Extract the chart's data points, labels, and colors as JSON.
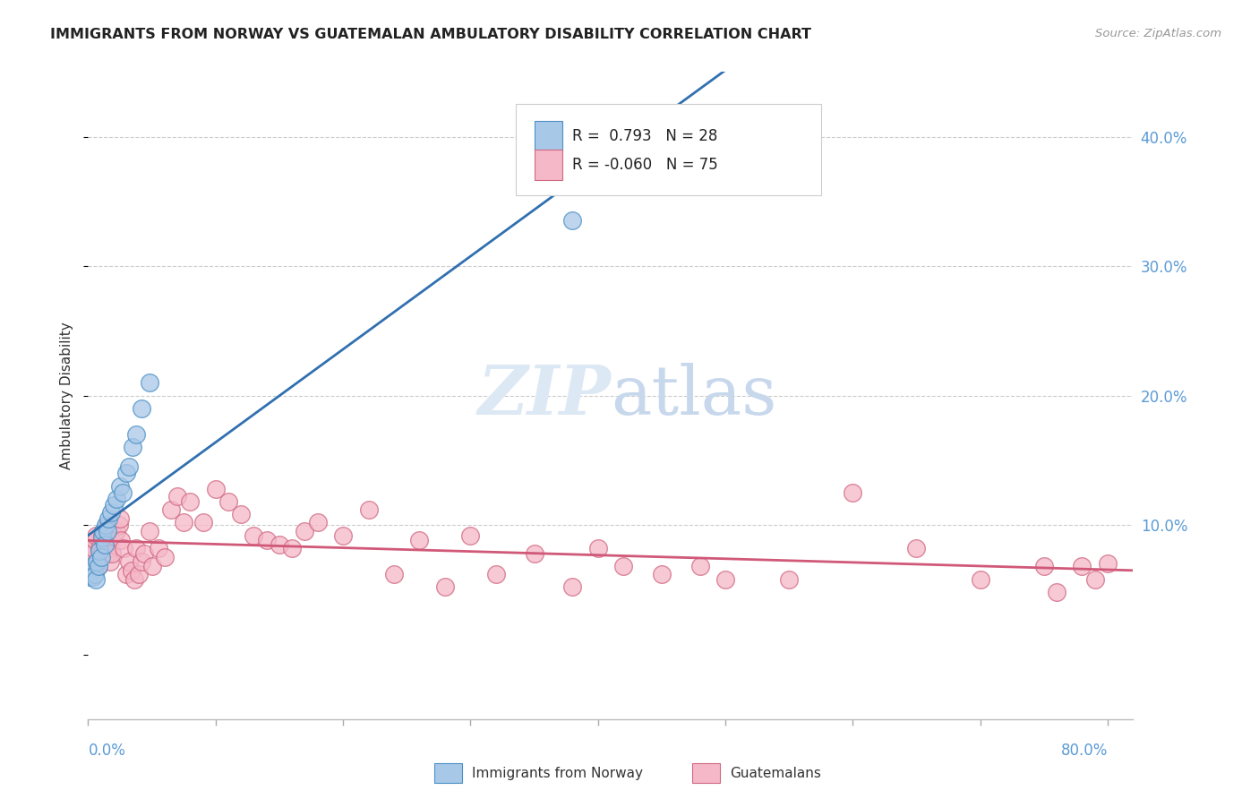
{
  "title": "IMMIGRANTS FROM NORWAY VS GUATEMALAN AMBULATORY DISABILITY CORRELATION CHART",
  "source": "Source: ZipAtlas.com",
  "ylabel": "Ambulatory Disability",
  "right_yticks": [
    "40.0%",
    "30.0%",
    "20.0%",
    "10.0%"
  ],
  "right_ytick_vals": [
    0.4,
    0.3,
    0.2,
    0.1
  ],
  "norway_color": "#a8c8e8",
  "norwegianfill_color": "#a8c8e8",
  "guatemalan_color": "#f5b8c8",
  "norway_edge_color": "#4a90c4",
  "guatemalan_edge_color": "#d06880",
  "norway_line_color": "#3070b0",
  "guatemalan_line_color": "#d05878",
  "watermark_color": "#dde8f5",
  "xlim": [
    0.0,
    0.82
  ],
  "ylim": [
    -0.05,
    0.45
  ],
  "norway_x": [
    0.001,
    0.002,
    0.003,
    0.004,
    0.005,
    0.006,
    0.007,
    0.008,
    0.009,
    0.01,
    0.011,
    0.012,
    0.013,
    0.014,
    0.015,
    0.016,
    0.018,
    0.02,
    0.022,
    0.025,
    0.027,
    0.03,
    0.032,
    0.035,
    0.038,
    0.042,
    0.048,
    0.38
  ],
  "norway_y": [
    0.06,
    0.065,
    0.068,
    0.06,
    0.062,
    0.058,
    0.072,
    0.068,
    0.08,
    0.075,
    0.09,
    0.095,
    0.085,
    0.1,
    0.095,
    0.105,
    0.11,
    0.115,
    0.12,
    0.13,
    0.125,
    0.14,
    0.145,
    0.16,
    0.17,
    0.19,
    0.21,
    0.335
  ],
  "guatemalan_x": [
    0.001,
    0.002,
    0.003,
    0.004,
    0.005,
    0.006,
    0.007,
    0.008,
    0.009,
    0.01,
    0.011,
    0.012,
    0.013,
    0.014,
    0.015,
    0.016,
    0.017,
    0.018,
    0.019,
    0.02,
    0.022,
    0.024,
    0.025,
    0.026,
    0.028,
    0.03,
    0.032,
    0.034,
    0.036,
    0.038,
    0.04,
    0.042,
    0.044,
    0.048,
    0.05,
    0.055,
    0.06,
    0.065,
    0.07,
    0.075,
    0.08,
    0.09,
    0.1,
    0.11,
    0.12,
    0.13,
    0.14,
    0.15,
    0.16,
    0.17,
    0.18,
    0.2,
    0.22,
    0.24,
    0.26,
    0.28,
    0.3,
    0.32,
    0.35,
    0.38,
    0.4,
    0.42,
    0.45,
    0.48,
    0.5,
    0.55,
    0.6,
    0.65,
    0.7,
    0.75,
    0.76,
    0.78,
    0.79,
    0.8
  ],
  "guatemalan_y": [
    0.08,
    0.085,
    0.078,
    0.082,
    0.088,
    0.092,
    0.072,
    0.068,
    0.082,
    0.078,
    0.092,
    0.088,
    0.095,
    0.098,
    0.078,
    0.082,
    0.072,
    0.088,
    0.078,
    0.092,
    0.095,
    0.1,
    0.105,
    0.088,
    0.082,
    0.062,
    0.072,
    0.065,
    0.058,
    0.082,
    0.062,
    0.072,
    0.078,
    0.095,
    0.068,
    0.082,
    0.075,
    0.112,
    0.122,
    0.102,
    0.118,
    0.102,
    0.128,
    0.118,
    0.108,
    0.092,
    0.088,
    0.085,
    0.082,
    0.095,
    0.102,
    0.092,
    0.112,
    0.062,
    0.088,
    0.052,
    0.092,
    0.062,
    0.078,
    0.052,
    0.082,
    0.068,
    0.062,
    0.068,
    0.058,
    0.058,
    0.125,
    0.082,
    0.058,
    0.068,
    0.048,
    0.068,
    0.058,
    0.07
  ],
  "background_color": "#ffffff"
}
